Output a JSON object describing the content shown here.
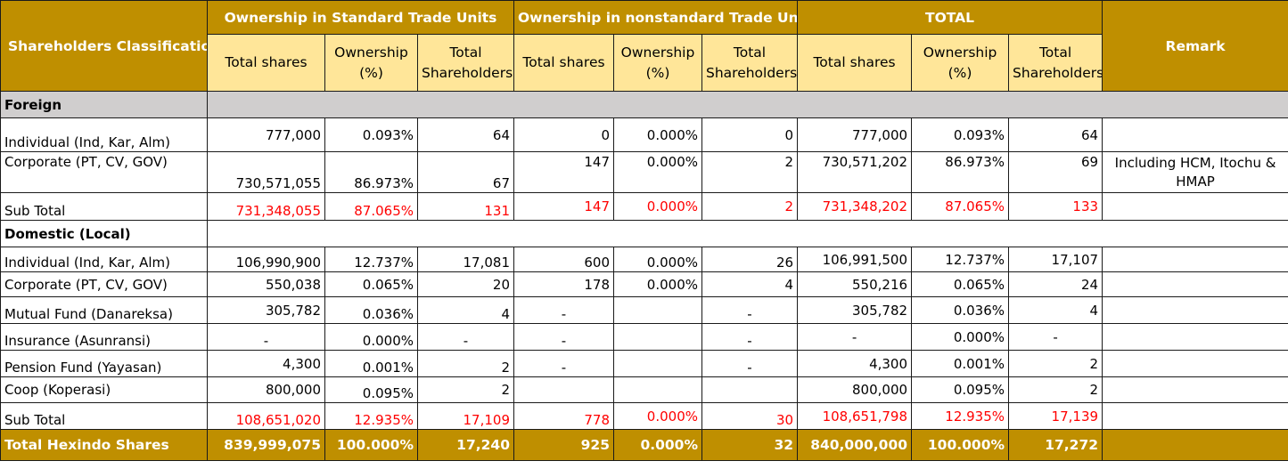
{
  "header": {
    "classification": "Shareholders Classification",
    "group_standard": "Ownership in Standard Trade Units",
    "group_nonstandard": "Ownership in nonstandard Trade Units",
    "group_total": "TOTAL",
    "remark": "Remark",
    "col_total_shares": "Total shares",
    "col_ownership": "Ownership (%)",
    "col_total_shareholders": "Total Shareholders"
  },
  "sections": {
    "foreign": {
      "label": "Foreign",
      "rows": [
        {
          "label": "Individual (Ind, Kar, Alm)",
          "std_shares": "777,000",
          "std_pct": "0.093%",
          "std_holders": "64",
          "ns_shares": "0",
          "ns_pct": "0.000%",
          "ns_holders": "0",
          "tot_shares": "777,000",
          "tot_pct": "0.093%",
          "tot_holders": "64",
          "remark": ""
        },
        {
          "label": "Corporate (PT, CV, GOV)",
          "std_shares": "730,571,055",
          "std_pct": "86.973%",
          "std_holders": "67",
          "ns_shares": "147",
          "ns_pct": "0.000%",
          "ns_holders": "2",
          "tot_shares": "730,571,202",
          "tot_pct": "86.973%",
          "tot_holders": "69",
          "remark": "Including HCM, Itochu & HMAP"
        },
        {
          "label": "Sub Total",
          "std_shares": "731,348,055",
          "std_pct": "87.065%",
          "std_holders": "131",
          "ns_shares": "147",
          "ns_pct": "0.000%",
          "ns_holders": "2",
          "tot_shares": "731,348,202",
          "tot_pct": "87.065%",
          "tot_holders": "133",
          "remark": ""
        }
      ]
    },
    "domestic": {
      "label": "Domestic (Local)",
      "rows": [
        {
          "label": "Individual (Ind, Kar, Alm)",
          "std_shares": "106,990,900",
          "std_pct": "12.737%",
          "std_holders": "17,081",
          "ns_shares": "600",
          "ns_pct": "0.000%",
          "ns_holders": "26",
          "tot_shares": "106,991,500",
          "tot_pct": "12.737%",
          "tot_holders": "17,107"
        },
        {
          "label": "Corporate (PT, CV, GOV)",
          "std_shares": "550,038",
          "std_pct": "0.065%",
          "std_holders": "20",
          "ns_shares": "178",
          "ns_pct": "0.000%",
          "ns_holders": "4",
          "tot_shares": "550,216",
          "tot_pct": "0.065%",
          "tot_holders": "24"
        },
        {
          "label": "Mutual Fund (Danareksa)",
          "std_shares": "305,782",
          "std_pct": "0.036%",
          "std_holders": "4",
          "ns_shares": "-",
          "ns_pct": "",
          "ns_holders": "-",
          "tot_shares": "305,782",
          "tot_pct": "0.036%",
          "tot_holders": "4"
        },
        {
          "label": "Insurance (Asunransi)",
          "std_shares": "-",
          "std_pct": "0.000%",
          "std_holders": "-",
          "ns_shares": "-",
          "ns_pct": "",
          "ns_holders": "-",
          "tot_shares": "-",
          "tot_pct": "0.000%",
          "tot_holders": "-"
        },
        {
          "label": "Pension Fund (Yayasan)",
          "std_shares": "4,300",
          "std_pct": "0.001%",
          "std_holders": "2",
          "ns_shares": "-",
          "ns_pct": "",
          "ns_holders": "-",
          "tot_shares": "4,300",
          "tot_pct": "0.001%",
          "tot_holders": "2"
        },
        {
          "label": "Coop (Koperasi)",
          "std_shares": "800,000",
          "std_pct": "0.095%",
          "std_holders": "2",
          "ns_shares": "",
          "ns_pct": "",
          "ns_holders": "",
          "tot_shares": "800,000",
          "tot_pct": "0.095%",
          "tot_holders": "2"
        },
        {
          "label": "Sub Total",
          "std_shares": "108,651,020",
          "std_pct": "12.935%",
          "std_holders": "17,109",
          "ns_shares": "778",
          "ns_pct": "0.000%",
          "ns_holders": "30",
          "tot_shares": "108,651,798",
          "tot_pct": "12.935%",
          "tot_holders": "17,139"
        }
      ]
    }
  },
  "grand_total": {
    "label": "Total Hexindo Shares",
    "std_shares": "839,999,075",
    "std_pct": "100.000%",
    "std_holders": "17,240",
    "ns_shares": "925",
    "ns_pct": "0.000%",
    "ns_holders": "32",
    "tot_shares": "840,000,000",
    "tot_pct": "100.000%",
    "tot_holders": "17,272"
  },
  "colors": {
    "header_gold": "#bf8f00",
    "subheader_yellow": "#ffe699",
    "section_gray": "#d0cece",
    "subtotal_red": "#ff0000"
  }
}
